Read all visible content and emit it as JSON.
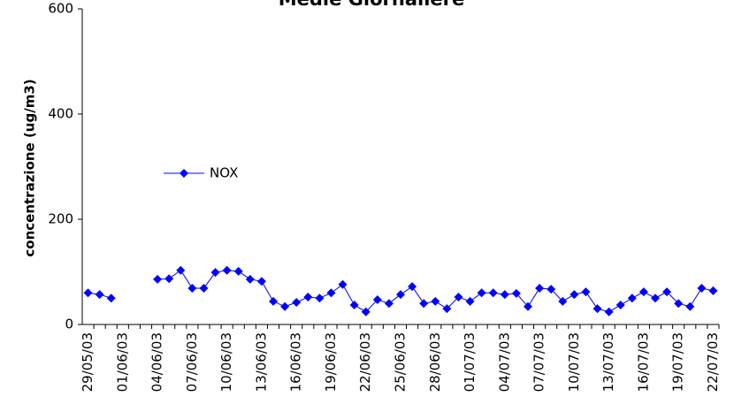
{
  "chart_data": {
    "type": "line",
    "title": "Medie Giornaliere",
    "y_label": "concentrazione (ug/m3)",
    "categories": [
      "29/05/03",
      null,
      null,
      "01/06/03",
      null,
      null,
      "04/06/03",
      null,
      null,
      "07/06/03",
      null,
      null,
      "10/06/03",
      null,
      null,
      "13/06/03",
      null,
      null,
      "16/06/03",
      null,
      null,
      "19/06/03",
      null,
      null,
      "22/06/03",
      null,
      null,
      "25/06/03",
      null,
      null,
      "28/06/03",
      null,
      null,
      "01/07/03",
      null,
      null,
      "04/07/03",
      null,
      null,
      "07/07/03",
      null,
      null,
      "10/07/03",
      null,
      null,
      "13/07/03",
      null,
      null,
      "16/07/03",
      null,
      null,
      "19/07/03",
      null,
      null,
      "22/07/03"
    ],
    "series": [
      {
        "name": "NOX",
        "color": "#0000ff",
        "values": [
          60,
          57,
          50,
          null,
          null,
          null,
          86,
          87,
          103,
          69,
          69,
          99,
          103,
          101,
          86,
          82,
          44,
          34,
          42,
          52,
          50,
          60,
          76,
          37,
          24,
          47,
          40,
          57,
          72,
          40,
          44,
          30,
          52,
          44,
          60,
          60,
          57,
          59,
          34,
          69,
          67,
          44,
          57,
          62,
          30,
          24,
          37,
          50,
          62,
          50,
          62,
          40,
          34,
          69,
          64
        ]
      }
    ],
    "ylim": [
      0,
      600
    ],
    "yticks": [
      0,
      200,
      400,
      600
    ],
    "grid": false,
    "legend": "center-left"
  }
}
